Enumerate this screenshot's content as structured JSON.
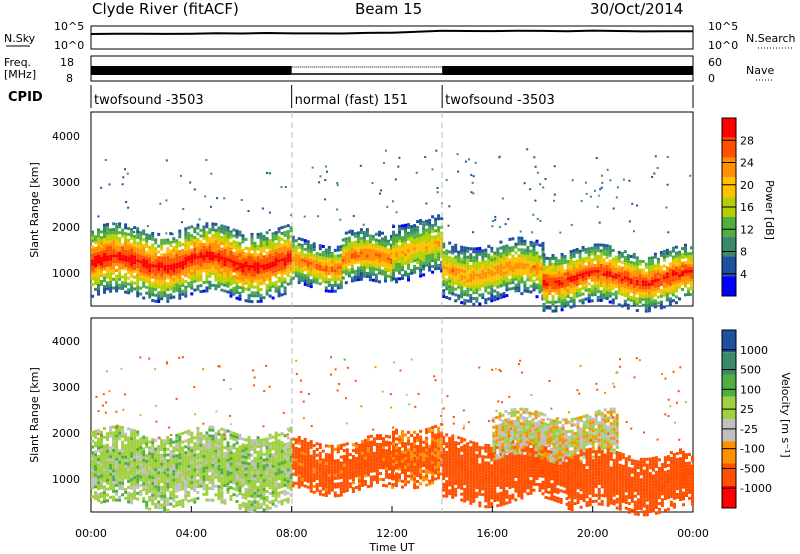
{
  "header": {
    "radar": "Clyde River (fitACF)",
    "beam": "Beam 15",
    "date": "30/Oct/2014"
  },
  "noise_panel": {
    "left_label": "N.Sky",
    "right_label": "N.Search",
    "left_ticks": [
      "10^5",
      "10^0"
    ],
    "right_ticks": [
      "10^5",
      "10^0"
    ]
  },
  "freq_panel": {
    "left_label_line1": "Freq.",
    "left_label_line2": "[MHz]",
    "right_label": "Nave",
    "left_ticks": [
      "18",
      "8"
    ],
    "right_ticks": [
      "60",
      "0"
    ]
  },
  "cpid_panel": {
    "label": "CPID",
    "segments": [
      {
        "text": "twofsound -3503",
        "start_h": 0,
        "end_h": 8
      },
      {
        "text": "normal (fast) 151",
        "start_h": 8,
        "end_h": 14
      },
      {
        "text": "twofsound -3503",
        "start_h": 14,
        "end_h": 24
      }
    ]
  },
  "power_panel": {
    "ylabel": "Slant Range [km]",
    "yticks": [
      "4000",
      "3000",
      "2000",
      "1000"
    ],
    "colorbar_label": "Power [dB]",
    "colorbar_ticks": [
      "28",
      "24",
      "20",
      "16",
      "12",
      "8",
      "4"
    ]
  },
  "velocity_panel": {
    "ylabel": "Slant Range [km]",
    "yticks": [
      "4000",
      "3000",
      "2000",
      "1000"
    ],
    "colorbar_label": "Velocity [m s⁻¹]",
    "colorbar_ticks": [
      "1000",
      "500",
      "100",
      "25",
      "-25",
      "-100",
      "-500",
      "-1000"
    ]
  },
  "xaxis": {
    "label": "Time UT",
    "ticks": [
      "00:00",
      "04:00",
      "08:00",
      "12:00",
      "16:00",
      "20:00",
      "00:00"
    ]
  },
  "chart_data": [
    {
      "type": "line",
      "title": "N.Sky / N.Search",
      "x_unit": "hours UT",
      "x": [
        0,
        1,
        2,
        3,
        4,
        5,
        6,
        7,
        8,
        9,
        10,
        11,
        12,
        13,
        14,
        15,
        16,
        17,
        18,
        19,
        20,
        21,
        22,
        23,
        24
      ],
      "y_log10": [
        3.2,
        3.3,
        3.3,
        3.3,
        3.3,
        3.4,
        3.4,
        3.4,
        3.4,
        3.4,
        3.4,
        3.5,
        3.5,
        3.8,
        4.0,
        3.9,
        3.9,
        4.0,
        4.0,
        3.9,
        4.0,
        3.9,
        3.8,
        3.9,
        3.8
      ],
      "ylim_log10": [
        0,
        5
      ]
    },
    {
      "type": "area",
      "title": "Freq. [MHz] / Nave",
      "segments": [
        {
          "start_h": 0,
          "end_h": 8,
          "style": "solid"
        },
        {
          "start_h": 8,
          "end_h": 14,
          "style": "dotted"
        },
        {
          "start_h": 14,
          "end_h": 24,
          "style": "solid"
        }
      ],
      "ylim_freq": [
        8,
        18
      ],
      "ylim_nave": [
        0,
        60
      ]
    },
    {
      "type": "heatmap",
      "title": "Power [dB]",
      "x_unit": "hours UT",
      "y_unit": "km",
      "xlim": [
        0,
        24
      ],
      "ylim": [
        180,
        4500
      ],
      "clim": [
        0,
        30
      ],
      "colors": [
        "#0000ff",
        "#2050a0",
        "#3a8a6a",
        "#4fb040",
        "#b5d000",
        "#ffc000",
        "#ff9000",
        "#ff5000",
        "#ff0000"
      ],
      "bands": [
        {
          "x_start": 0,
          "x_end": 8,
          "r_center": 1200,
          "r_halfwidth": 550,
          "core_db": 29
        },
        {
          "x_start": 8,
          "x_end": 10,
          "r_center": 1150,
          "r_halfwidth": 350,
          "core_db": 25
        },
        {
          "x_start": 10,
          "x_end": 12,
          "r_center": 1250,
          "r_halfwidth": 400,
          "core_db": 24
        },
        {
          "x_start": 12,
          "x_end": 14,
          "r_center": 1500,
          "r_halfwidth": 450,
          "core_db": 20
        },
        {
          "x_start": 14,
          "x_end": 18,
          "r_center": 1000,
          "r_halfwidth": 450,
          "core_db": 22
        },
        {
          "x_start": 18,
          "x_end": 24,
          "r_center": 850,
          "r_halfwidth": 450,
          "core_db": 28
        }
      ]
    },
    {
      "type": "heatmap",
      "title": "Velocity [m s⁻¹]",
      "x_unit": "hours UT",
      "y_unit": "km",
      "xlim": [
        0,
        24
      ],
      "ylim": [
        180,
        4500
      ],
      "clim": [
        -1000,
        1000
      ],
      "colors": [
        "#ff0000",
        "#ff5000",
        "#ff9000",
        "#c0c0c0",
        "#a0d040",
        "#4fb040",
        "#3a8a6a",
        "#2050a0"
      ],
      "bands": [
        {
          "x_start": 0,
          "x_end": 8,
          "r_center": 1200,
          "r_halfwidth": 600,
          "velocity": 60
        },
        {
          "x_start": 8,
          "x_end": 12,
          "r_center": 1250,
          "r_halfwidth": 400,
          "velocity": -150
        },
        {
          "x_start": 12,
          "x_end": 14,
          "r_center": 1500,
          "r_halfwidth": 450,
          "velocity": -120
        },
        {
          "x_start": 14,
          "x_end": 19,
          "r_center": 1150,
          "r_halfwidth": 500,
          "velocity": -200
        },
        {
          "x_start": 16,
          "x_end": 21,
          "r_center": 1900,
          "r_halfwidth": 350,
          "velocity": 0
        },
        {
          "x_start": 19,
          "x_end": 24,
          "r_center": 900,
          "r_halfwidth": 450,
          "velocity": -180
        }
      ]
    }
  ]
}
